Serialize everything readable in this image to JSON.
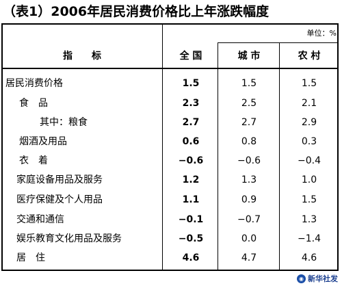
{
  "title": "（表1）2006年居民消费价格比上年涨跌幅度",
  "unit": "单位：%",
  "headers": {
    "indicator": "指　　标",
    "national": "全 国",
    "urban": "城 市",
    "rural": "农 村"
  },
  "rows": [
    {
      "label": "居民消费价格",
      "national": "1.5",
      "urban": "1.5",
      "rural": "1.5"
    },
    {
      "label": "食　品",
      "national": "2.3",
      "urban": "2.5",
      "rural": "2.1"
    },
    {
      "label": "其中：粮食",
      "national": "2.7",
      "urban": "2.7",
      "rural": "2.9"
    },
    {
      "label": "烟酒及用品",
      "national": "0.6",
      "urban": "0.8",
      "rural": "0.3"
    },
    {
      "label": "衣　着",
      "national": "−0.6",
      "urban": "−0.6",
      "rural": "−0.4"
    },
    {
      "label": "家庭设备用品及服务",
      "national": "1.2",
      "urban": "1.3",
      "rural": "1.0"
    },
    {
      "label": "医疗保健及个人用品",
      "national": "1.1",
      "urban": "0.9",
      "rural": "1.5"
    },
    {
      "label": "交通和通信",
      "national": "−0.1",
      "urban": "−0.7",
      "rural": "1.3"
    },
    {
      "label": "娱乐教育文化用品及服务",
      "national": "−0.5",
      "urban": "0.0",
      "rural": "−1.4"
    },
    {
      "label": "居　住",
      "national": "4.6",
      "urban": "4.7",
      "rural": "4.6"
    }
  ],
  "footer": {
    "logo_text": "新华社发"
  }
}
